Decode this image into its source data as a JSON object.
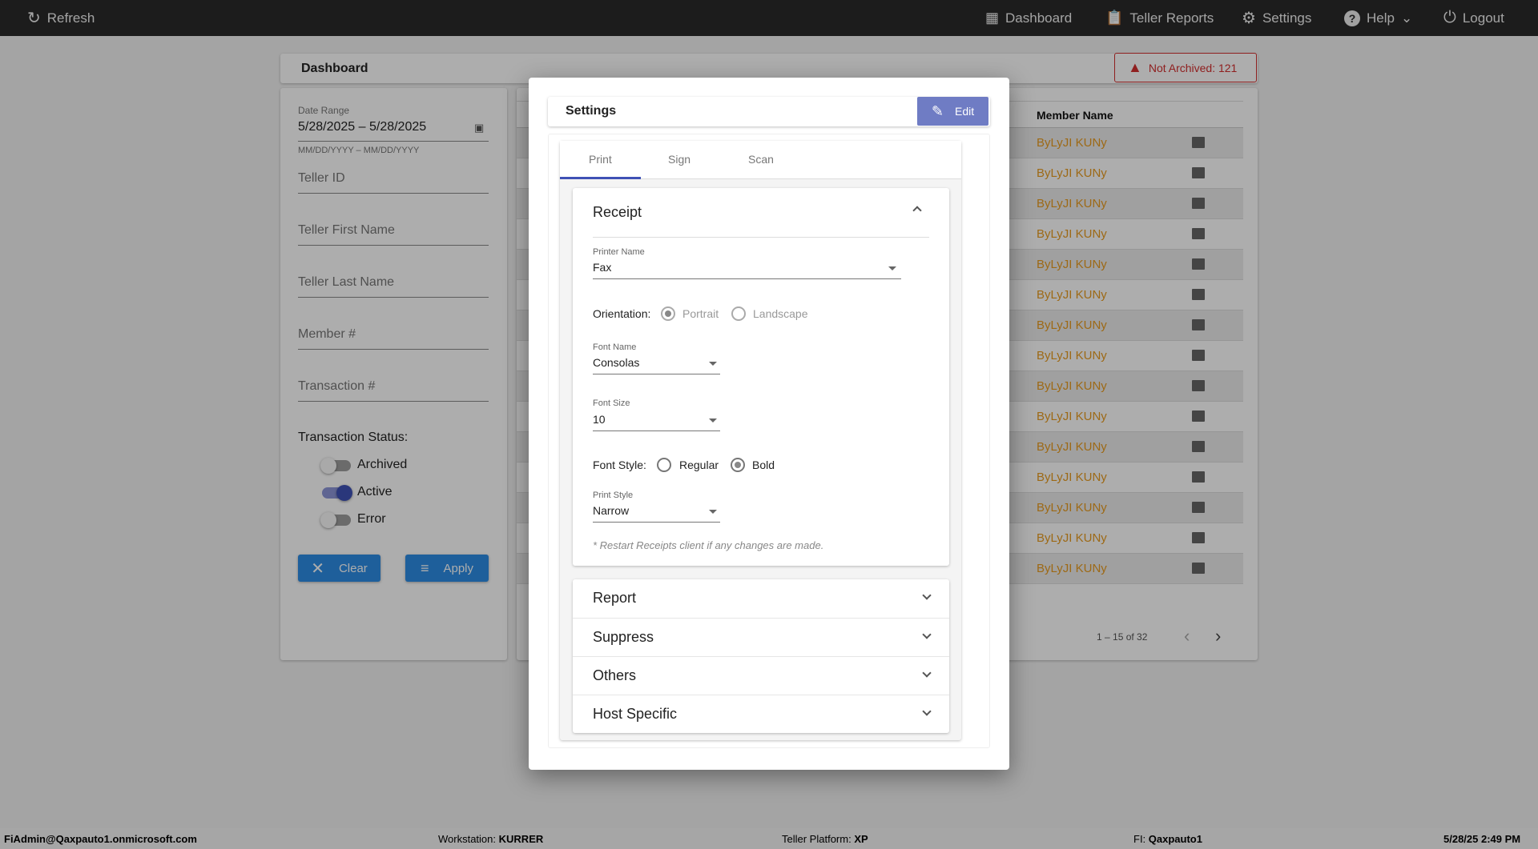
{
  "topbar": {
    "refresh": "Refresh",
    "nav": [
      {
        "label": "Dashboard",
        "icon": "dashboard-icon"
      },
      {
        "label": "Teller Reports",
        "icon": "clipboard-icon"
      },
      {
        "label": "Settings",
        "icon": "gear-icon"
      },
      {
        "label": "Help",
        "icon": "help-icon"
      },
      {
        "label": "Logout",
        "icon": "power-icon"
      }
    ]
  },
  "dashboard": {
    "title": "Dashboard",
    "alert": "Not Archived: 121",
    "alert_color": "#d32f2f"
  },
  "filters": {
    "date_label": "Date Range",
    "date_value": "5/28/2025 – 5/28/2025",
    "date_hint": "MM/DD/YYYY – MM/DD/YYYY",
    "fields": [
      "Teller ID",
      "Teller First Name",
      "Teller Last Name",
      "Member #",
      "Transaction #"
    ],
    "status_label": "Transaction Status:",
    "toggles": [
      {
        "label": "Archived",
        "on": false
      },
      {
        "label": "Active",
        "on": true
      },
      {
        "label": "Error",
        "on": false
      }
    ],
    "clear": "Clear",
    "apply": "Apply",
    "accent": "#3f51b5"
  },
  "table": {
    "header": "Member Name",
    "rows": [
      "ByLyJI KUNy",
      "ByLyJI KUNy",
      "ByLyJI KUNy",
      "ByLyJI KUNy",
      "ByLyJI KUNy",
      "ByLyJI KUNy",
      "ByLyJI KUNy",
      "ByLyJI KUNy",
      "ByLyJI KUNy",
      "ByLyJI KUNy",
      "ByLyJI KUNy",
      "ByLyJI KUNy",
      "ByLyJI KUNy",
      "ByLyJI KUNy",
      "ByLyJI KUNy"
    ],
    "pagination": "1 – 15 of 32"
  },
  "modal": {
    "title": "Settings",
    "edit": "Edit",
    "tabs": [
      "Print",
      "Sign",
      "Scan"
    ],
    "active_tab": "Print",
    "receipt": {
      "title": "Receipt",
      "printer_label": "Printer Name",
      "printer_value": "Fax",
      "orientation_label": "Orientation:",
      "orientation_options": [
        "Portrait",
        "Landscape"
      ],
      "orientation_selected": "Portrait",
      "font_name_label": "Font Name",
      "font_name_value": "Consolas",
      "font_size_label": "Font Size",
      "font_size_value": "10",
      "font_style_label": "Font Style:",
      "font_style_options": [
        "Regular",
        "Bold"
      ],
      "font_style_selected": "Bold",
      "print_style_label": "Print Style",
      "print_style_value": "Narrow",
      "note": "* Restart Receipts client if any changes are made."
    },
    "sections": [
      "Report",
      "Suppress",
      "Others",
      "Host Specific"
    ]
  },
  "footer": {
    "user": "FiAdmin@Qaxpauto1.onmicrosoft.com",
    "workstation_label": "Workstation:",
    "workstation": "KURRER",
    "platform_label": "Teller Platform:",
    "platform": "XP",
    "fi_label": "FI:",
    "fi": "Qaxpauto1",
    "datetime": "5/28/25 2:49 PM"
  }
}
